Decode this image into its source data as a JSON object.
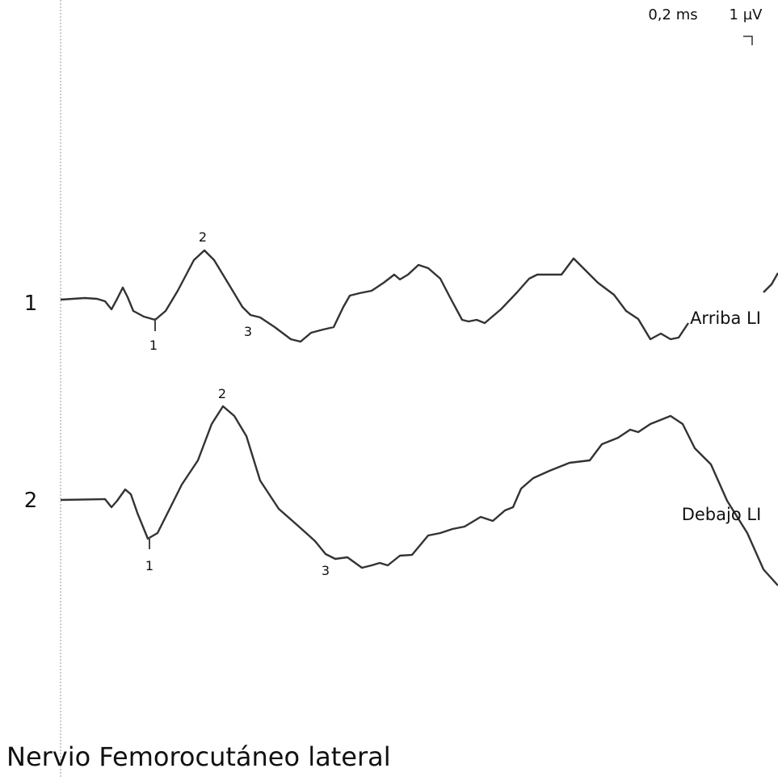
{
  "scale": {
    "time": "0,2 ms",
    "amplitude": "1 µV"
  },
  "traces": [
    {
      "number": "1",
      "label": "Arriba LI",
      "markers": [
        "1",
        "2",
        "3"
      ]
    },
    {
      "number": "2",
      "label": "Debajo LI",
      "markers": [
        "1",
        "2",
        "3"
      ]
    }
  ],
  "title": "Nervio Femorocutáneo lateral"
}
